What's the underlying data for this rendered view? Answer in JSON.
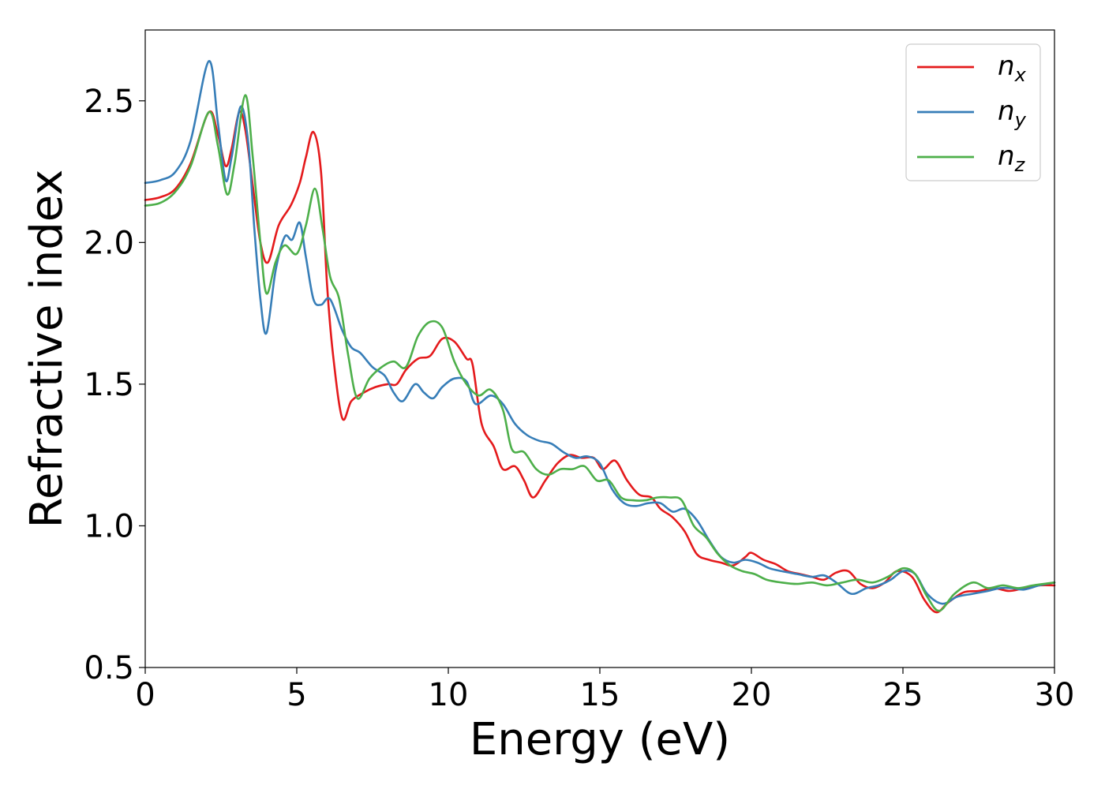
{
  "chart_data": {
    "type": "line",
    "title": "",
    "xlabel": "Energy (eV)",
    "ylabel": "Refractive index",
    "xlim": [
      0,
      30
    ],
    "ylim": [
      0.5,
      2.75
    ],
    "xticks": [
      0,
      5,
      10,
      15,
      20,
      25,
      30
    ],
    "xtick_labels": [
      "0",
      "5",
      "10",
      "15",
      "20",
      "25",
      "30"
    ],
    "yticks": [
      0.5,
      1.0,
      1.5,
      2.0,
      2.5
    ],
    "ytick_labels": [
      "0.5",
      "1.0",
      "1.5",
      "2.0",
      "2.5"
    ],
    "grid": false,
    "legend_position": "top-right",
    "series": [
      {
        "name": "n_x",
        "label_base": "n",
        "label_sub": "x",
        "color": "#e41a1c",
        "points": [
          [
            0,
            2.15
          ],
          [
            0.5,
            2.16
          ],
          [
            1,
            2.19
          ],
          [
            1.5,
            2.28
          ],
          [
            2.1,
            2.46
          ],
          [
            2.4,
            2.38
          ],
          [
            2.65,
            2.27
          ],
          [
            2.85,
            2.33
          ],
          [
            3.1,
            2.46
          ],
          [
            3.3,
            2.4
          ],
          [
            3.55,
            2.2
          ],
          [
            3.8,
            2.0
          ],
          [
            4.05,
            1.93
          ],
          [
            4.4,
            2.06
          ],
          [
            4.8,
            2.13
          ],
          [
            5.1,
            2.21
          ],
          [
            5.3,
            2.3
          ],
          [
            5.55,
            2.39
          ],
          [
            5.8,
            2.25
          ],
          [
            6.0,
            1.85
          ],
          [
            6.2,
            1.6
          ],
          [
            6.5,
            1.38
          ],
          [
            6.8,
            1.44
          ],
          [
            7.2,
            1.47
          ],
          [
            7.6,
            1.49
          ],
          [
            8.0,
            1.5
          ],
          [
            8.3,
            1.5
          ],
          [
            8.6,
            1.55
          ],
          [
            9.0,
            1.59
          ],
          [
            9.4,
            1.6
          ],
          [
            9.8,
            1.66
          ],
          [
            10.2,
            1.65
          ],
          [
            10.6,
            1.59
          ],
          [
            10.8,
            1.57
          ],
          [
            11.1,
            1.36
          ],
          [
            11.5,
            1.28
          ],
          [
            11.8,
            1.2
          ],
          [
            12.2,
            1.21
          ],
          [
            12.5,
            1.16
          ],
          [
            12.8,
            1.1
          ],
          [
            13.2,
            1.16
          ],
          [
            13.6,
            1.22
          ],
          [
            14.0,
            1.25
          ],
          [
            14.4,
            1.24
          ],
          [
            14.8,
            1.24
          ],
          [
            15.1,
            1.2
          ],
          [
            15.5,
            1.23
          ],
          [
            15.9,
            1.16
          ],
          [
            16.3,
            1.11
          ],
          [
            16.7,
            1.1
          ],
          [
            17.0,
            1.06
          ],
          [
            17.4,
            1.03
          ],
          [
            17.8,
            0.98
          ],
          [
            18.2,
            0.9
          ],
          [
            18.6,
            0.88
          ],
          [
            19.0,
            0.87
          ],
          [
            19.4,
            0.86
          ],
          [
            19.8,
            0.89
          ],
          [
            20.0,
            0.905
          ],
          [
            20.4,
            0.88
          ],
          [
            20.8,
            0.865
          ],
          [
            21.2,
            0.84
          ],
          [
            21.6,
            0.83
          ],
          [
            22.0,
            0.82
          ],
          [
            22.4,
            0.81
          ],
          [
            22.8,
            0.835
          ],
          [
            23.2,
            0.84
          ],
          [
            23.6,
            0.795
          ],
          [
            24.0,
            0.78
          ],
          [
            24.4,
            0.8
          ],
          [
            24.8,
            0.84
          ],
          [
            25.3,
            0.82
          ],
          [
            25.7,
            0.74
          ],
          [
            26.1,
            0.695
          ],
          [
            26.5,
            0.73
          ],
          [
            27.0,
            0.765
          ],
          [
            27.5,
            0.77
          ],
          [
            28.0,
            0.78
          ],
          [
            28.5,
            0.77
          ],
          [
            29.0,
            0.78
          ],
          [
            29.5,
            0.79
          ],
          [
            30.0,
            0.79
          ]
        ]
      },
      {
        "name": "n_y",
        "label_base": "n",
        "label_sub": "y",
        "color": "#377eb8",
        "points": [
          [
            0,
            2.21
          ],
          [
            0.5,
            2.22
          ],
          [
            1,
            2.25
          ],
          [
            1.5,
            2.36
          ],
          [
            2.1,
            2.64
          ],
          [
            2.4,
            2.42
          ],
          [
            2.65,
            2.22
          ],
          [
            2.85,
            2.3
          ],
          [
            3.15,
            2.48
          ],
          [
            3.4,
            2.35
          ],
          [
            3.6,
            2.05
          ],
          [
            3.8,
            1.8
          ],
          [
            4.0,
            1.68
          ],
          [
            4.3,
            1.9
          ],
          [
            4.6,
            2.02
          ],
          [
            4.85,
            2.01
          ],
          [
            5.1,
            2.07
          ],
          [
            5.3,
            1.95
          ],
          [
            5.55,
            1.8
          ],
          [
            5.8,
            1.78
          ],
          [
            6.1,
            1.8
          ],
          [
            6.5,
            1.69
          ],
          [
            6.8,
            1.63
          ],
          [
            7.1,
            1.61
          ],
          [
            7.5,
            1.56
          ],
          [
            7.9,
            1.53
          ],
          [
            8.2,
            1.47
          ],
          [
            8.5,
            1.44
          ],
          [
            8.9,
            1.5
          ],
          [
            9.2,
            1.47
          ],
          [
            9.5,
            1.45
          ],
          [
            9.8,
            1.49
          ],
          [
            10.2,
            1.52
          ],
          [
            10.6,
            1.51
          ],
          [
            10.9,
            1.43
          ],
          [
            11.4,
            1.46
          ],
          [
            11.8,
            1.43
          ],
          [
            12.2,
            1.36
          ],
          [
            12.6,
            1.32
          ],
          [
            13.0,
            1.3
          ],
          [
            13.4,
            1.29
          ],
          [
            13.8,
            1.26
          ],
          [
            14.2,
            1.24
          ],
          [
            14.6,
            1.245
          ],
          [
            15.0,
            1.22
          ],
          [
            15.4,
            1.13
          ],
          [
            15.8,
            1.08
          ],
          [
            16.2,
            1.07
          ],
          [
            16.6,
            1.08
          ],
          [
            17.0,
            1.08
          ],
          [
            17.4,
            1.05
          ],
          [
            17.8,
            1.06
          ],
          [
            18.2,
            1.02
          ],
          [
            18.6,
            0.95
          ],
          [
            19.0,
            0.89
          ],
          [
            19.4,
            0.87
          ],
          [
            19.8,
            0.88
          ],
          [
            20.2,
            0.87
          ],
          [
            20.6,
            0.85
          ],
          [
            21.0,
            0.84
          ],
          [
            21.5,
            0.83
          ],
          [
            22.0,
            0.82
          ],
          [
            22.4,
            0.825
          ],
          [
            22.8,
            0.8
          ],
          [
            23.3,
            0.76
          ],
          [
            23.8,
            0.78
          ],
          [
            24.2,
            0.79
          ],
          [
            24.6,
            0.81
          ],
          [
            25.0,
            0.84
          ],
          [
            25.4,
            0.83
          ],
          [
            25.8,
            0.76
          ],
          [
            26.3,
            0.725
          ],
          [
            26.8,
            0.75
          ],
          [
            27.3,
            0.76
          ],
          [
            27.8,
            0.77
          ],
          [
            28.2,
            0.78
          ],
          [
            28.6,
            0.78
          ],
          [
            29.0,
            0.775
          ],
          [
            29.5,
            0.79
          ],
          [
            30.0,
            0.8
          ]
        ]
      },
      {
        "name": "n_z",
        "label_base": "n",
        "label_sub": "z",
        "color": "#4daf4a",
        "points": [
          [
            0,
            2.13
          ],
          [
            0.5,
            2.14
          ],
          [
            1,
            2.18
          ],
          [
            1.5,
            2.27
          ],
          [
            2.1,
            2.46
          ],
          [
            2.4,
            2.34
          ],
          [
            2.7,
            2.17
          ],
          [
            2.95,
            2.28
          ],
          [
            3.3,
            2.52
          ],
          [
            3.55,
            2.3
          ],
          [
            3.8,
            2.0
          ],
          [
            4.0,
            1.82
          ],
          [
            4.3,
            1.93
          ],
          [
            4.6,
            1.99
          ],
          [
            5.0,
            1.96
          ],
          [
            5.3,
            2.06
          ],
          [
            5.6,
            2.19
          ],
          [
            5.85,
            2.05
          ],
          [
            6.1,
            1.88
          ],
          [
            6.4,
            1.8
          ],
          [
            6.7,
            1.6
          ],
          [
            7.0,
            1.45
          ],
          [
            7.4,
            1.52
          ],
          [
            7.8,
            1.56
          ],
          [
            8.2,
            1.58
          ],
          [
            8.6,
            1.56
          ],
          [
            9.0,
            1.67
          ],
          [
            9.4,
            1.72
          ],
          [
            9.8,
            1.7
          ],
          [
            10.2,
            1.58
          ],
          [
            10.6,
            1.5
          ],
          [
            11.0,
            1.46
          ],
          [
            11.4,
            1.48
          ],
          [
            11.8,
            1.41
          ],
          [
            12.1,
            1.27
          ],
          [
            12.5,
            1.26
          ],
          [
            12.9,
            1.2
          ],
          [
            13.3,
            1.18
          ],
          [
            13.7,
            1.2
          ],
          [
            14.1,
            1.2
          ],
          [
            14.5,
            1.21
          ],
          [
            14.9,
            1.16
          ],
          [
            15.3,
            1.16
          ],
          [
            15.7,
            1.1
          ],
          [
            16.1,
            1.09
          ],
          [
            16.5,
            1.09
          ],
          [
            16.9,
            1.1
          ],
          [
            17.3,
            1.1
          ],
          [
            17.7,
            1.09
          ],
          [
            18.1,
            1.0
          ],
          [
            18.5,
            0.96
          ],
          [
            18.9,
            0.9
          ],
          [
            19.3,
            0.86
          ],
          [
            19.7,
            0.84
          ],
          [
            20.1,
            0.83
          ],
          [
            20.5,
            0.81
          ],
          [
            21.0,
            0.8
          ],
          [
            21.5,
            0.795
          ],
          [
            22.0,
            0.8
          ],
          [
            22.5,
            0.79
          ],
          [
            23.0,
            0.8
          ],
          [
            23.5,
            0.81
          ],
          [
            24.0,
            0.8
          ],
          [
            24.5,
            0.82
          ],
          [
            25.0,
            0.85
          ],
          [
            25.4,
            0.83
          ],
          [
            25.8,
            0.75
          ],
          [
            26.2,
            0.7
          ],
          [
            26.7,
            0.76
          ],
          [
            27.3,
            0.8
          ],
          [
            27.8,
            0.78
          ],
          [
            28.3,
            0.79
          ],
          [
            28.8,
            0.78
          ],
          [
            29.3,
            0.79
          ],
          [
            30.0,
            0.8
          ]
        ]
      }
    ]
  }
}
